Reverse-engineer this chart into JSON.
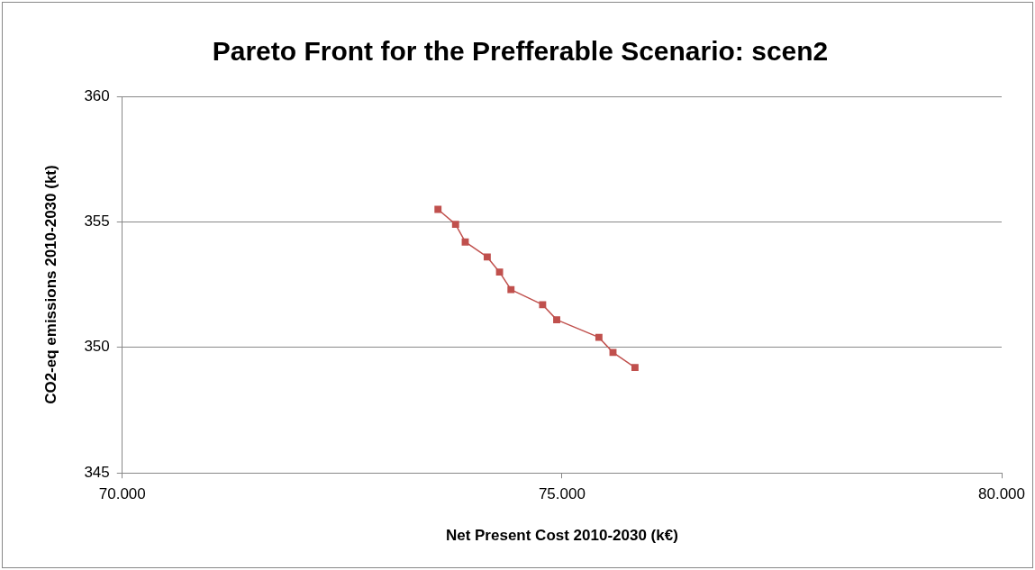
{
  "chart_data": {
    "type": "line",
    "title": "Pareto Front for the Prefferable Scenario: scen2",
    "xlabel": "Net Present Cost 2010-2030 (k€)",
    "ylabel": "CO2-eq emissions 2010-2030 (kt)",
    "x": [
      73590,
      73790,
      73900,
      74150,
      74290,
      74420,
      74780,
      74940,
      75420,
      75580,
      75830
    ],
    "series": [
      {
        "color": "#c0504d",
        "values": [
          355.5,
          354.9,
          354.2,
          353.6,
          353.0,
          352.3,
          351.7,
          351.1,
          350.4,
          349.8,
          349.2
        ]
      }
    ],
    "xlim": [
      70000,
      80000
    ],
    "xticks": [
      {
        "value": 70000,
        "label": "70.000"
      },
      {
        "value": 75000,
        "label": "75.000"
      },
      {
        "value": 80000,
        "label": "80.000"
      }
    ],
    "ylim": [
      345,
      360
    ],
    "yticks": [
      345,
      350,
      355,
      360
    ],
    "grid": "y",
    "legend": false,
    "marker": "square",
    "line_style": "solid"
  }
}
